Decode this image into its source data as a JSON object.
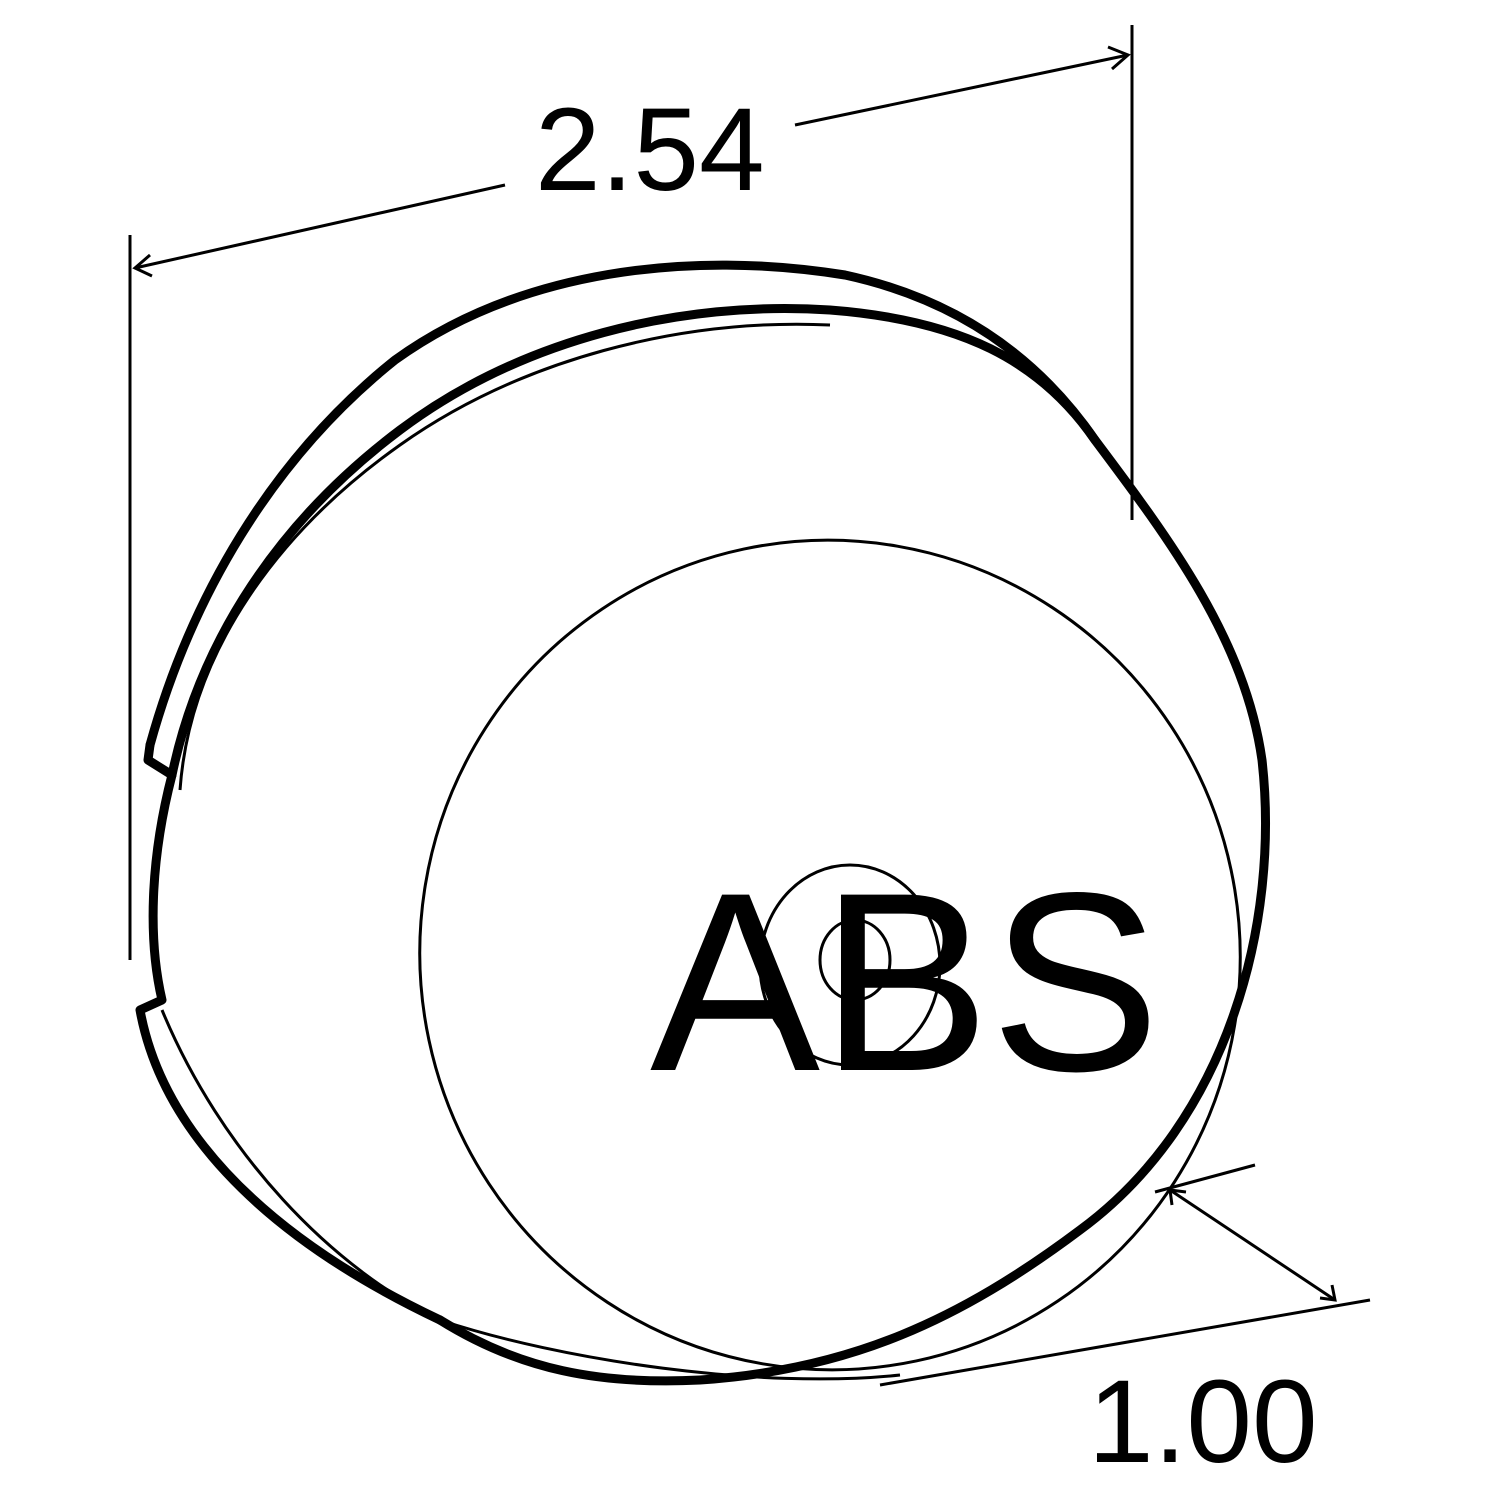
{
  "dimensions": {
    "diameter": "2.54",
    "depth": "1.00"
  },
  "label": {
    "text": "ABS"
  },
  "colors": {
    "line": "#000000",
    "background": "#ffffff"
  }
}
